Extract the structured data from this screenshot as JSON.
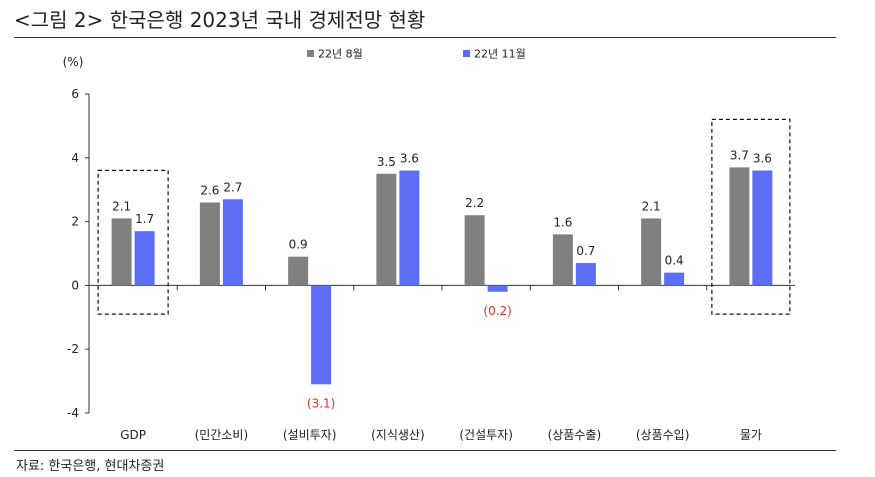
{
  "header": {
    "title": "<그림 2> 한국은행 2023년 국내 경제전망 현황"
  },
  "footer": {
    "source": "자료: 한국은행, 현대차증권"
  },
  "chart_data": {
    "type": "bar",
    "title": "",
    "ylabel": "(%)",
    "xlabel": "",
    "ylim": [
      -4,
      6
    ],
    "yticks": [
      -4,
      -2,
      0,
      2,
      4,
      6
    ],
    "grid": false,
    "legend_position": "top",
    "categories": [
      "GDP",
      "(민간소비)",
      "(설비투자)",
      "(지식생산)",
      "(건설투자)",
      "(상품수출)",
      "(상품수입)",
      "물가"
    ],
    "series": [
      {
        "name": "22년 8월",
        "color": "#808080",
        "values": [
          2.1,
          2.6,
          0.9,
          3.5,
          2.2,
          1.6,
          2.1,
          3.7
        ],
        "labels": [
          "2.1",
          "2.6",
          "0.9",
          "3.5",
          "2.2",
          "1.6",
          "2.1",
          "3.7"
        ]
      },
      {
        "name": "22년 11월",
        "color": "#5b6ef5",
        "values": [
          1.7,
          2.7,
          -3.1,
          3.6,
          -0.2,
          0.7,
          0.4,
          3.6
        ],
        "labels": [
          "1.7",
          "2.7",
          "(3.1)",
          "3.6",
          "(0.2)",
          "0.7",
          "0.4",
          "3.6"
        ]
      }
    ],
    "negative_label_color": "#e03030",
    "highlighted_categories": [
      "GDP",
      "물가"
    ]
  }
}
